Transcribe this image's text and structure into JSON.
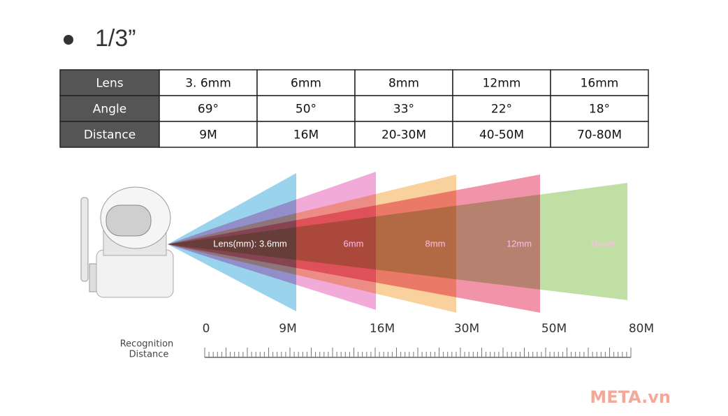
{
  "header": {
    "title": "1/3”"
  },
  "table": {
    "rows": [
      [
        "Lens",
        "3. 6mm",
        "6mm",
        "8mm",
        "12mm",
        "16mm"
      ],
      [
        "Angle",
        "69°",
        "50°",
        "33°",
        "22°",
        "18°"
      ],
      [
        "Distance",
        "9M",
        "16M",
        "20-30M",
        "40-50M",
        "70-80M"
      ]
    ]
  },
  "diagram": {
    "lens_labels": [
      "Lens(mm): 3.6mm",
      "6mm",
      "8mm",
      "12mm",
      "16mm"
    ],
    "scale_labels": [
      "0",
      "9M",
      "16M",
      "30M",
      "50M",
      "80M"
    ],
    "scale_title": [
      "Recognition",
      "Distance"
    ]
  },
  "watermark": "META.vn"
}
